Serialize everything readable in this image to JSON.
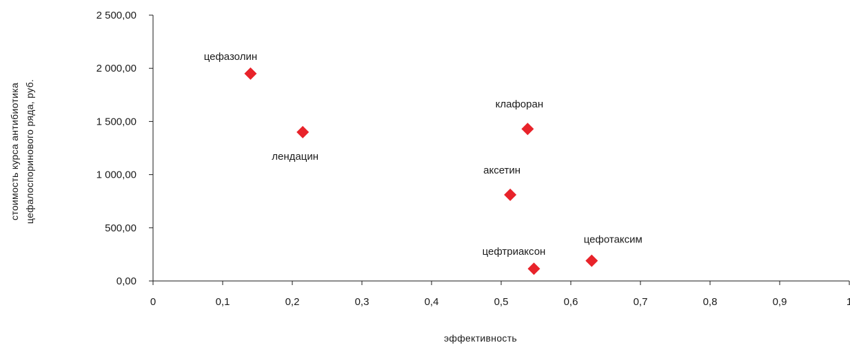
{
  "chart_data": {
    "type": "scatter",
    "xlabel": "эффективность",
    "ylabel_lines": [
      "стоимость курса антибиотика",
      "цефалоспоринового ряда, руб."
    ],
    "xlim": [
      0,
      1
    ],
    "ylim": [
      0,
      2500
    ],
    "grid": false,
    "legend": "none",
    "marker_color": "#e8232a",
    "marker_shape": "diamond",
    "x_ticks": [
      {
        "value": 0,
        "label": "0"
      },
      {
        "value": 0.1,
        "label": "0,1"
      },
      {
        "value": 0.2,
        "label": "0,2"
      },
      {
        "value": 0.3,
        "label": "0,3"
      },
      {
        "value": 0.4,
        "label": "0,4"
      },
      {
        "value": 0.5,
        "label": "0,5"
      },
      {
        "value": 0.6,
        "label": "0,6"
      },
      {
        "value": 0.7,
        "label": "0,7"
      },
      {
        "value": 0.8,
        "label": "0,8"
      },
      {
        "value": 0.9,
        "label": "0,9"
      },
      {
        "value": 1,
        "label": "1"
      }
    ],
    "y_ticks": [
      {
        "value": 0,
        "label": "0,00"
      },
      {
        "value": 500,
        "label": "500,00"
      },
      {
        "value": 1000,
        "label": "1 000,00"
      },
      {
        "value": 1500,
        "label": "1 500,00"
      },
      {
        "value": 2000,
        "label": "2 000,00"
      },
      {
        "value": 2500,
        "label": "2 500,00"
      }
    ],
    "points": [
      {
        "label": "цефазолин",
        "x": 0.14,
        "y": 1950,
        "label_position": "above-left"
      },
      {
        "label": "лендацин",
        "x": 0.215,
        "y": 1400,
        "label_position": "below"
      },
      {
        "label": "клафоран",
        "x": 0.538,
        "y": 1430,
        "label_position": "above"
      },
      {
        "label": "аксетин",
        "x": 0.513,
        "y": 810,
        "label_position": "above"
      },
      {
        "label": "цефтриаксон",
        "x": 0.547,
        "y": 115,
        "label_position": "above-left"
      },
      {
        "label": "цефотаксим",
        "x": 0.63,
        "y": 190,
        "label_position": "above-right"
      }
    ]
  }
}
